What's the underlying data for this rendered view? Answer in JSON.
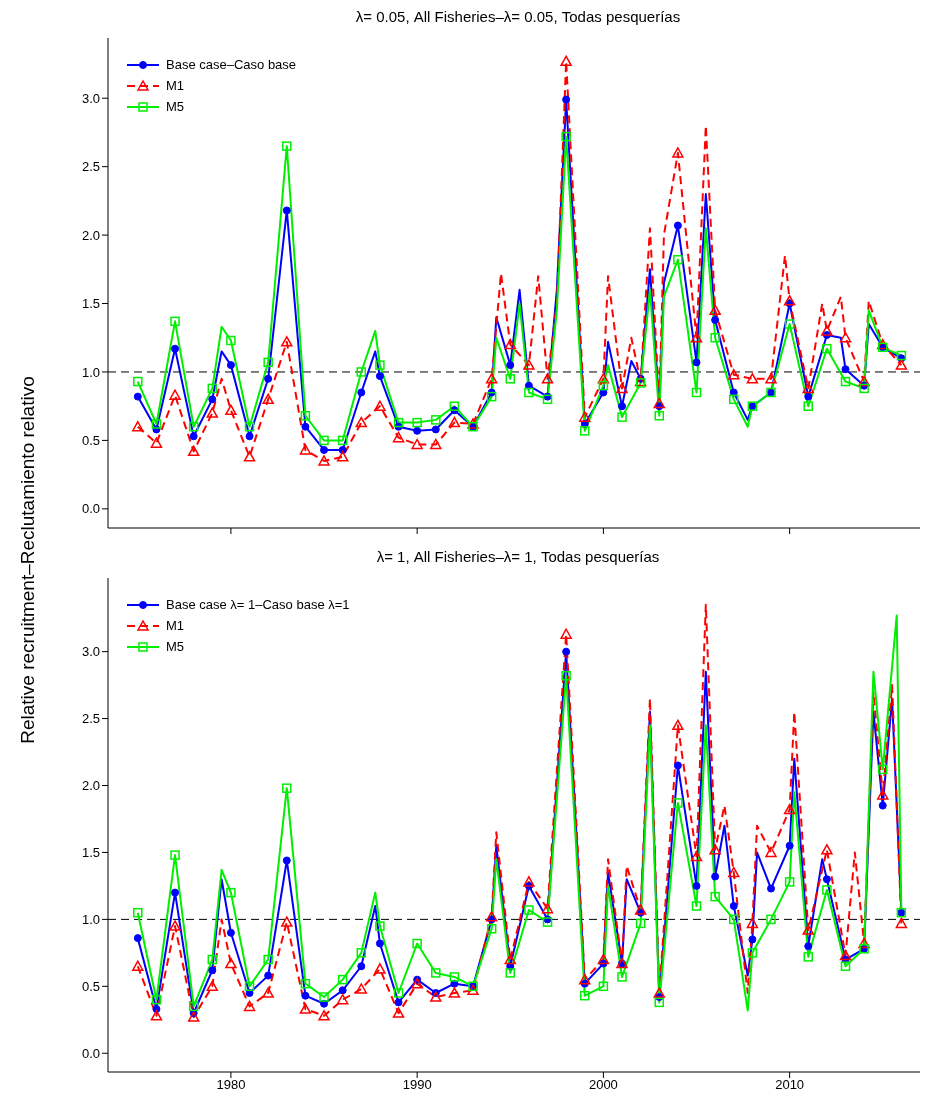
{
  "chart_data": [
    {
      "type": "line",
      "title": "λ= 0.05,  All Fisheries–λ= 0.05, Todas pesquerías",
      "ylabel": "Relative recruitment–Reclutamiento relativo",
      "xlim": [
        1973.4,
        2017
      ],
      "xticks": [
        1980,
        1990,
        2000,
        2010
      ],
      "ylim": [
        -0.14,
        3.44
      ],
      "yticks": [
        {
          "value": 0,
          "label": "0.0"
        },
        {
          "value": 0.5,
          "label": "0.5"
        },
        {
          "value": 1,
          "label": "1.0"
        },
        {
          "value": 1.5,
          "label": "1.5"
        },
        {
          "value": 2,
          "label": "2.0"
        },
        {
          "value": 2.5,
          "label": "2.5"
        },
        {
          "value": 3,
          "label": "3.0"
        }
      ],
      "tick_labels": "y",
      "legend": "top left",
      "grid": false,
      "ref_lines": [
        {
          "axis": "y",
          "value": 1,
          "color": "#000000",
          "line_style": "dashed"
        }
      ],
      "series": [
        {
          "name": "Base case–Caso base",
          "color": "#0000ff",
          "marker": "circle",
          "line_style": "solid",
          "x": [
            1975,
            1976,
            1977,
            1978,
            1979,
            1979.5,
            1980,
            1981,
            1982,
            1983,
            1984,
            1985,
            1986,
            1987,
            1987.75,
            1988,
            1989,
            1990,
            1991,
            1992,
            1993,
            1994,
            1994.25,
            1995,
            1995.5,
            1996,
            1997,
            1997.5,
            1998,
            1999,
            2000,
            2000.25,
            2001,
            2001.5,
            2002,
            2002.5,
            2003,
            2003.25,
            2004,
            2005,
            2005.5,
            2006,
            2007,
            2007.75,
            2008,
            2009,
            2010,
            2011,
            2012,
            2012.75,
            2013,
            2014,
            2014.25,
            2015,
            2016
          ],
          "values": [
            0.82,
            0.58,
            1.17,
            0.53,
            0.8,
            1.15,
            1.05,
            0.53,
            0.95,
            2.18,
            0.6,
            0.43,
            0.43,
            0.85,
            1.15,
            0.97,
            0.6,
            0.57,
            0.58,
            0.72,
            0.6,
            0.85,
            1.4,
            1.05,
            1.6,
            0.9,
            0.82,
            1.6,
            2.99,
            0.62,
            0.85,
            1.22,
            0.75,
            1.08,
            0.95,
            1.75,
            0.75,
            1.65,
            2.07,
            1.07,
            2.3,
            1.38,
            0.85,
            0.65,
            0.75,
            0.85,
            1.5,
            0.82,
            1.27,
            1.25,
            1.02,
            0.9,
            1.35,
            1.18,
            1.1
          ]
        },
        {
          "name": "M1",
          "color": "#ff0000",
          "marker": "triangle",
          "line_style": "dashed",
          "x": [
            1975,
            1976,
            1977,
            1978,
            1979,
            1979.5,
            1980,
            1981,
            1982,
            1983,
            1984,
            1985,
            1986,
            1987,
            1988,
            1989,
            1990,
            1991,
            1992,
            1993,
            1994,
            1994.5,
            1995,
            1996,
            1996.5,
            1997,
            1997.5,
            1998,
            1999,
            2000,
            2000.25,
            2001,
            2001.5,
            2002,
            2002.5,
            2003,
            2003.25,
            2004,
            2005,
            2005.5,
            2006,
            2007,
            2008,
            2009,
            2009.75,
            2010,
            2011,
            2011.75,
            2012,
            2012.75,
            2013,
            2014,
            2014.25,
            2015,
            2016
          ],
          "values": [
            0.6,
            0.48,
            0.83,
            0.42,
            0.7,
            0.95,
            0.72,
            0.38,
            0.8,
            1.22,
            0.43,
            0.35,
            0.38,
            0.63,
            0.75,
            0.52,
            0.47,
            0.47,
            0.63,
            0.62,
            0.95,
            1.72,
            1.2,
            1.05,
            1.7,
            0.95,
            1.5,
            3.27,
            0.67,
            0.95,
            1.7,
            0.88,
            1.25,
            0.93,
            2.05,
            0.77,
            2.0,
            2.6,
            1.25,
            2.8,
            1.45,
            0.98,
            0.95,
            0.95,
            1.85,
            1.52,
            0.88,
            1.5,
            1.3,
            1.55,
            1.25,
            0.93,
            1.52,
            1.2,
            1.05
          ]
        },
        {
          "name": "M5",
          "color": "#00ee00",
          "marker": "square",
          "line_style": "solid",
          "x": [
            1975,
            1976,
            1977,
            1978,
            1979,
            1979.5,
            1980,
            1981,
            1982,
            1983,
            1984,
            1985,
            1986,
            1987,
            1987.75,
            1988,
            1989,
            1990,
            1991,
            1992,
            1993,
            1994,
            1994.25,
            1995,
            1995.5,
            1996,
            1997,
            1997.5,
            1998,
            1999,
            2000,
            2000.25,
            2001,
            2002,
            2002.5,
            2003,
            2003.25,
            2004,
            2005,
            2005.5,
            2006,
            2007,
            2007.75,
            2008,
            2009,
            2010,
            2011,
            2012,
            2013,
            2014,
            2014.25,
            2015,
            2016
          ],
          "values": [
            0.93,
            0.62,
            1.37,
            0.6,
            0.88,
            1.33,
            1.23,
            0.6,
            1.07,
            2.65,
            0.68,
            0.5,
            0.5,
            1.0,
            1.3,
            1.05,
            0.63,
            0.63,
            0.65,
            0.75,
            0.6,
            0.82,
            1.25,
            0.95,
            1.5,
            0.85,
            0.8,
            1.45,
            2.72,
            0.57,
            0.9,
            1.05,
            0.67,
            0.92,
            1.6,
            0.68,
            1.55,
            1.82,
            0.85,
            2.05,
            1.25,
            0.8,
            0.6,
            0.75,
            0.85,
            1.35,
            0.75,
            1.17,
            0.93,
            0.88,
            1.45,
            1.18,
            1.12
          ]
        }
      ]
    },
    {
      "type": "line",
      "title": "λ= 1,  All Fisheries–λ= 1, Todas pesquerías",
      "xlim": [
        1973.4,
        2017
      ],
      "xticks": [
        1980,
        1990,
        2000,
        2010
      ],
      "ylim": [
        -0.14,
        3.55
      ],
      "yticks": [
        {
          "value": 0,
          "label": "0.0"
        },
        {
          "value": 0.5,
          "label": "0.5"
        },
        {
          "value": 1,
          "label": "1.0"
        },
        {
          "value": 1.5,
          "label": "1.5"
        },
        {
          "value": 2,
          "label": "2.0"
        },
        {
          "value": 2.5,
          "label": "2.5"
        },
        {
          "value": 3,
          "label": "3.0"
        }
      ],
      "legend": "top left",
      "grid": false,
      "ref_lines": [
        {
          "axis": "y",
          "value": 1,
          "color": "#000000",
          "line_style": "dashed"
        }
      ],
      "series": [
        {
          "name": "Base case λ= 1–Caso base λ=1",
          "color": "#0000ff",
          "marker": "circle",
          "line_style": "solid",
          "x": [
            1975,
            1976,
            1977,
            1978,
            1979,
            1979.5,
            1980,
            1981,
            1982,
            1983,
            1984,
            1985,
            1986,
            1987,
            1987.75,
            1988,
            1989,
            1990,
            1991,
            1992,
            1993,
            1994,
            1994.25,
            1995,
            1996,
            1997,
            1998,
            1999,
            2000,
            2000.25,
            2001,
            2001.25,
            2002,
            2002.5,
            2003,
            2004,
            2005,
            2005.5,
            2006,
            2006.5,
            2007,
            2007.75,
            2008,
            2008.25,
            2009,
            2010,
            2010.25,
            2011,
            2011.75,
            2012,
            2013,
            2014,
            2014.5,
            2015,
            2015.5,
            2016
          ],
          "values": [
            0.86,
            0.33,
            1.2,
            0.3,
            0.62,
            1.3,
            0.9,
            0.45,
            0.58,
            1.44,
            0.43,
            0.37,
            0.47,
            0.65,
            1.1,
            0.82,
            0.38,
            0.55,
            0.45,
            0.52,
            0.5,
            1.0,
            1.55,
            0.65,
            1.25,
            1.0,
            3.0,
            0.52,
            0.67,
            1.35,
            0.67,
            1.3,
            1.05,
            2.55,
            0.42,
            2.15,
            1.25,
            2.85,
            1.32,
            1.7,
            1.1,
            0.58,
            0.85,
            1.5,
            1.23,
            1.55,
            2.2,
            0.8,
            1.45,
            1.3,
            0.7,
            0.78,
            2.55,
            1.85,
            2.65,
            1.05
          ]
        },
        {
          "name": "M1",
          "color": "#ff0000",
          "marker": "triangle",
          "line_style": "dashed",
          "x": [
            1975,
            1976,
            1977,
            1978,
            1979,
            1979.5,
            1980,
            1981,
            1982,
            1983,
            1984,
            1985,
            1986,
            1987,
            1988,
            1989,
            1990,
            1991,
            1992,
            1993,
            1994,
            1994.25,
            1995,
            1996,
            1997,
            1998,
            1999,
            2000,
            2000.25,
            2001,
            2001.25,
            2002,
            2002.5,
            2003,
            2004,
            2005,
            2005.5,
            2006,
            2006.5,
            2007,
            2007.75,
            2008,
            2008.25,
            2009,
            2010,
            2010.25,
            2011,
            2012,
            2013,
            2013.5,
            2014,
            2014.5,
            2015,
            2015.5,
            2016
          ],
          "values": [
            0.65,
            0.28,
            0.95,
            0.27,
            0.5,
            1.0,
            0.67,
            0.35,
            0.45,
            0.98,
            0.33,
            0.28,
            0.4,
            0.48,
            0.63,
            0.3,
            0.52,
            0.42,
            0.45,
            0.47,
            1.02,
            1.65,
            0.7,
            1.28,
            1.08,
            3.13,
            0.55,
            0.7,
            1.45,
            0.67,
            1.4,
            1.07,
            2.65,
            0.45,
            2.45,
            1.47,
            3.35,
            1.52,
            1.85,
            1.35,
            0.45,
            0.97,
            1.7,
            1.5,
            1.82,
            2.55,
            0.92,
            1.52,
            0.73,
            1.5,
            0.82,
            2.7,
            1.93,
            2.75,
            0.97
          ]
        },
        {
          "name": "M5",
          "color": "#00ee00",
          "marker": "square",
          "line_style": "solid",
          "x": [
            1975,
            1976,
            1977,
            1978,
            1979,
            1979.5,
            1980,
            1981,
            1982,
            1983,
            1984,
            1985,
            1986,
            1987,
            1987.75,
            1988,
            1989,
            1990,
            1991,
            1992,
            1993,
            1994,
            1994.25,
            1995,
            1996,
            1997,
            1998,
            1999,
            2000,
            2000.25,
            2001,
            2002,
            2002.5,
            2003,
            2004,
            2005,
            2005.5,
            2006,
            2007,
            2007.75,
            2008,
            2009,
            2010,
            2010.25,
            2011,
            2012,
            2013,
            2014,
            2014.5,
            2015,
            2015.75,
            2016
          ],
          "values": [
            1.05,
            0.4,
            1.48,
            0.35,
            0.7,
            1.37,
            1.2,
            0.5,
            0.7,
            1.98,
            0.52,
            0.42,
            0.55,
            0.75,
            1.2,
            0.95,
            0.45,
            0.82,
            0.6,
            0.57,
            0.5,
            0.93,
            1.45,
            0.6,
            1.07,
            0.98,
            2.82,
            0.43,
            0.5,
            1.25,
            0.57,
            0.97,
            2.45,
            0.38,
            1.87,
            1.1,
            2.45,
            1.17,
            1.0,
            0.32,
            0.75,
            1.0,
            1.28,
            1.95,
            0.72,
            1.22,
            0.65,
            0.78,
            2.85,
            2.12,
            3.27,
            1.05
          ]
        }
      ]
    }
  ]
}
